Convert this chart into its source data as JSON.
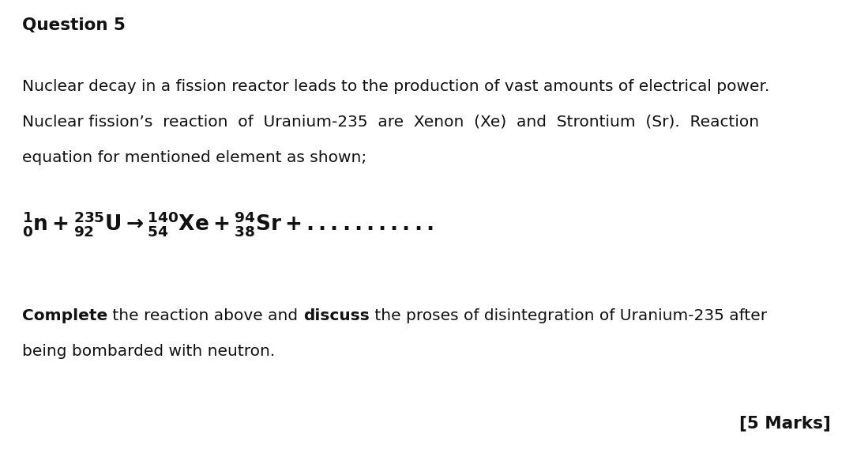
{
  "background_color": "#ffffff",
  "title": "Question 5",
  "title_fontsize": 15.5,
  "title_fontweight": "bold",
  "body_fontsize": 14.5,
  "equation_fontsize": 19,
  "marks_fontsize": 15.5,
  "marks_fontweight": "bold",
  "text_color": "#111111",
  "body_text_1": "Nuclear decay in a fission reactor leads to the production of vast amounts of electrical power.",
  "body_text_2": "Nuclear fission’s  reaction  of  Uranium-235  are  Xenon  (Xe)  and  Strontium  (Sr).  Reaction",
  "body_text_3": "equation for mentioned element as shown;",
  "complete_text_3": "being bombarded with neutron.",
  "marks_text": "[5 Marks]"
}
